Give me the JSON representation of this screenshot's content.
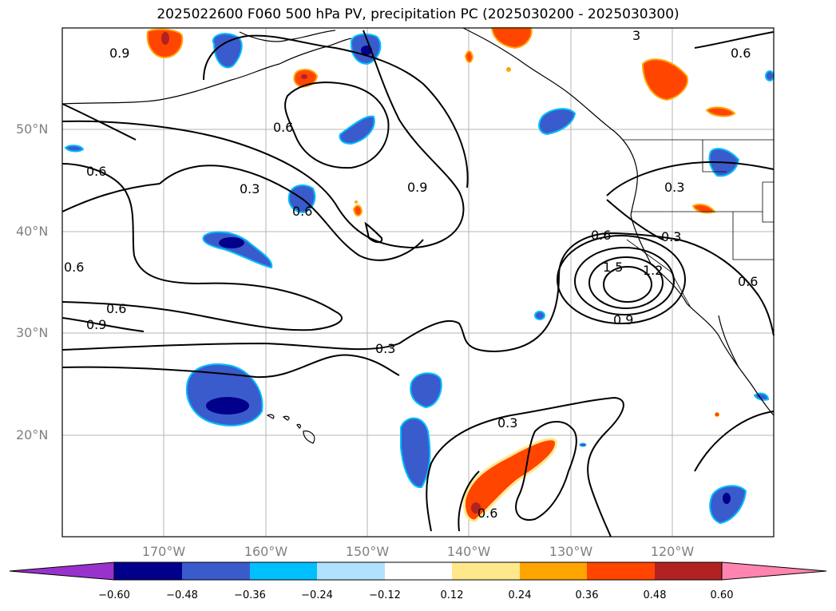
{
  "title": "2025022600 F060 500 hPa PV, precipitation PC (2025030200 - 2025030300)",
  "lat_labels": [
    "50°N",
    "40°N",
    "30°N",
    "20°N"
  ],
  "lon_labels": [
    "170°W",
    "160°W",
    "150°W",
    "140°W",
    "130°W",
    "120°W"
  ],
  "contour_labels": [
    "0.9",
    "0.6",
    "0.6",
    "0.3",
    "0.6",
    "0.6",
    "0.6",
    "0.9",
    "0.9",
    "0.6",
    "0.3",
    "1.5",
    "1.2",
    "0.9",
    "0.6",
    "0.3",
    "0.3",
    "0.3",
    "0.6",
    "3",
    "0.6"
  ],
  "colorbar": {
    "ticks": [
      "−0.60",
      "−0.48",
      "−0.36",
      "−0.24",
      "−0.12",
      "0.12",
      "0.24",
      "0.36",
      "0.48",
      "0.60"
    ],
    "colors": [
      "#9932cc",
      "#00008b",
      "#3a5bcc",
      "#00bfff",
      "#b0e2ff",
      "#ffffff",
      "#ffe88c",
      "#ffa500",
      "#ff4500",
      "#b22222",
      "#ff85b0"
    ]
  },
  "palette": {
    "contour": "#000000",
    "coast": "#000000",
    "grid": "#b4b4b4",
    "deep_blue": "#00008b",
    "mid_blue": "#3a5bcc",
    "light_blue": "#00bfff",
    "orange_red": "#ff4500",
    "dark_red": "#b22222",
    "yellow": "#ffe88c"
  }
}
